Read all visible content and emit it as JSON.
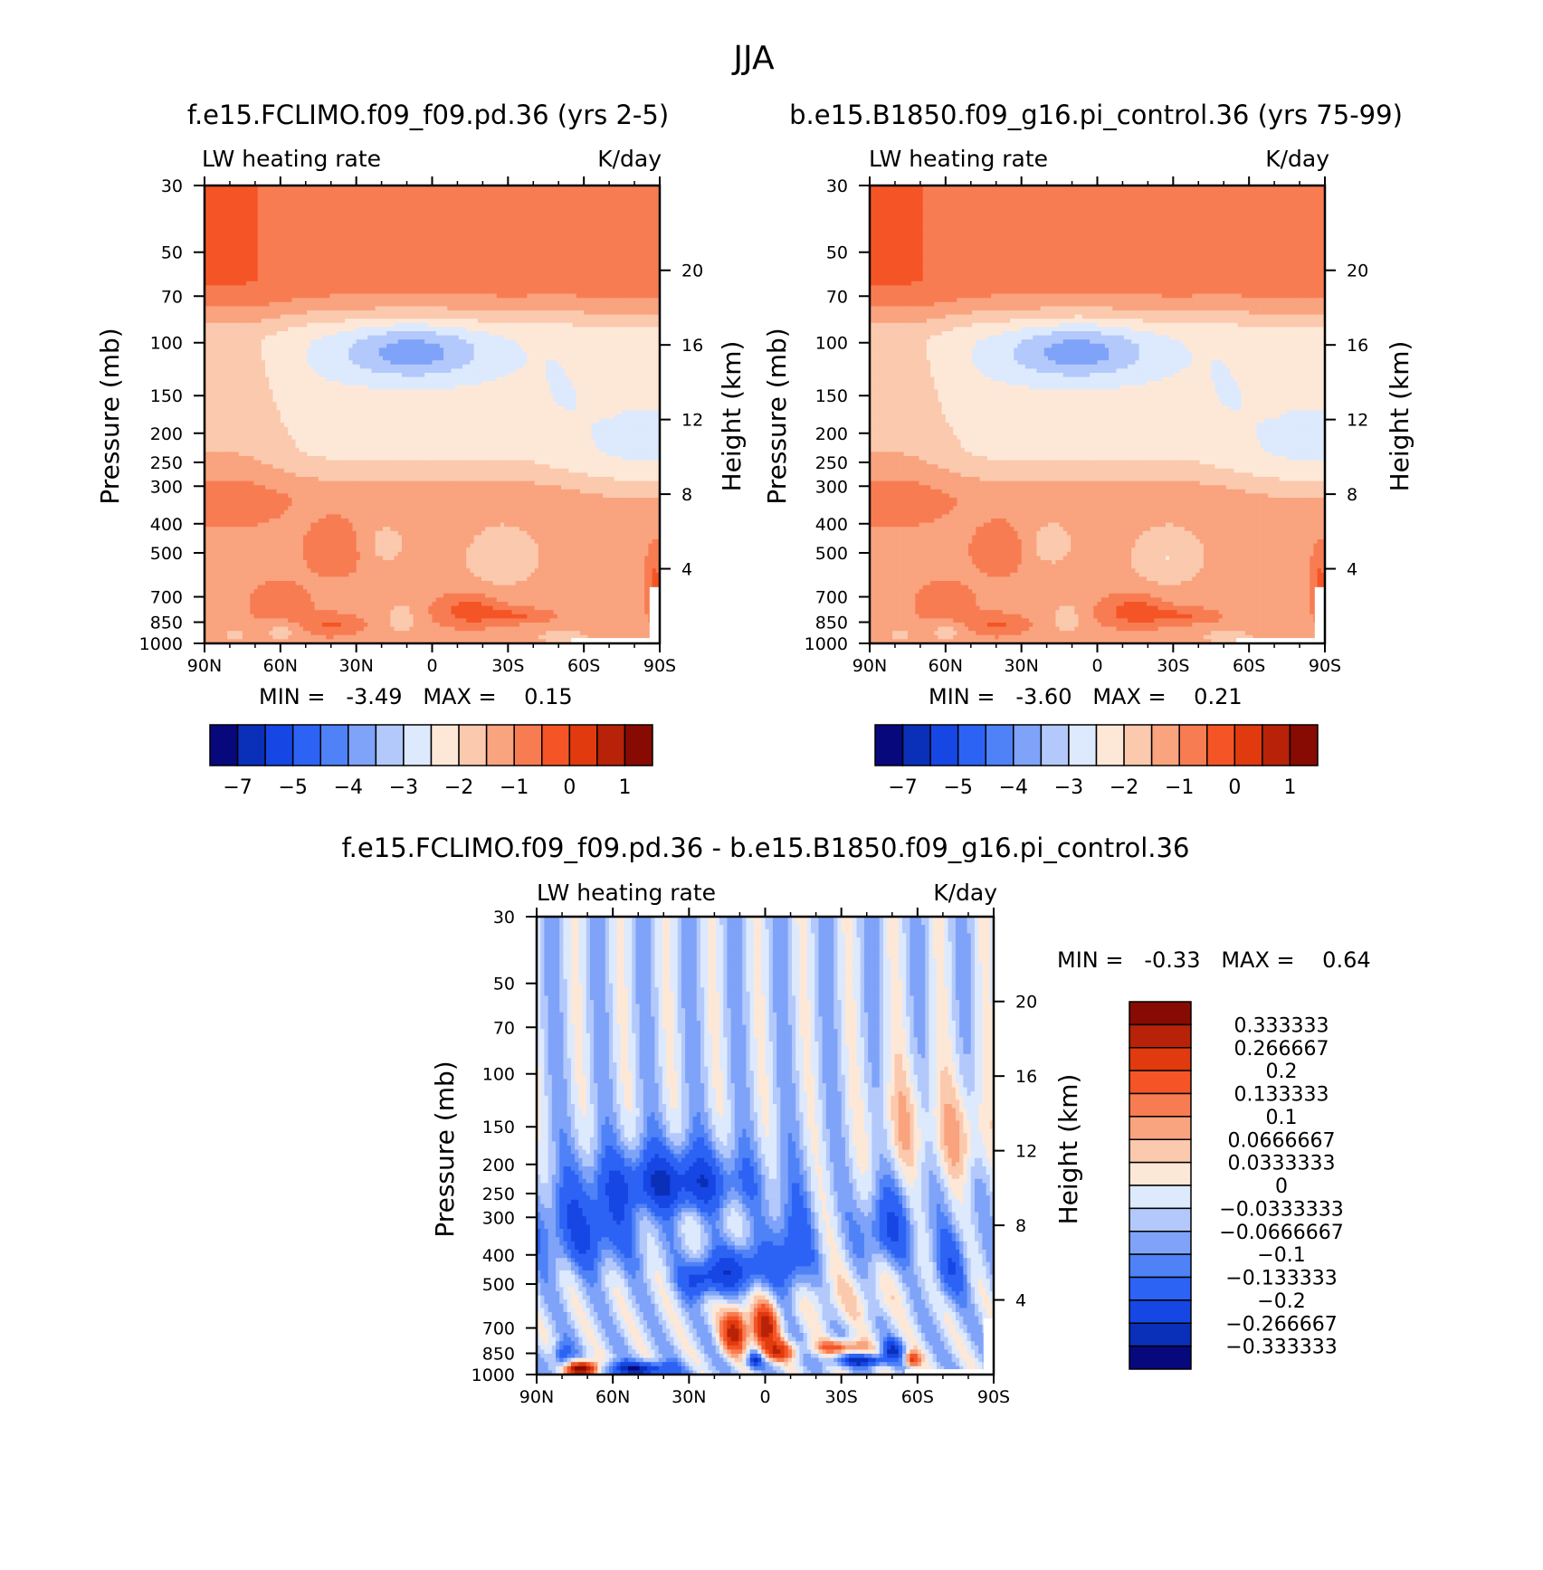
{
  "figure_title": "JJA",
  "colors": {
    "blues": [
      "#08087d",
      "#0a2fb8",
      "#1646e4",
      "#2d63f5",
      "#4f82f7",
      "#7fa3f8",
      "#b3c9fb",
      "#dde9fd"
    ],
    "reds": [
      "#fde8d8",
      "#fbc9ad",
      "#f9a37f",
      "#f87c52",
      "#f55526",
      "#e03a0e",
      "#b82208",
      "#870b02"
    ],
    "blank": "#ffffff"
  },
  "chart_data": [
    {
      "type": "heatmap",
      "id": "p1",
      "title": "f.e15.FCLIMO.f09_f09.pd.36 (yrs 2-5)",
      "variable": "LW heating rate",
      "units": "K/day",
      "xlabel": "",
      "ylabel": "Pressure (mb)",
      "ylabel_right": "Height (km)",
      "x_ticks": [
        "90N",
        "60N",
        "30N",
        "0",
        "30S",
        "60S",
        "90S"
      ],
      "x_range": [
        90,
        -90
      ],
      "y_ticks": [
        30,
        50,
        70,
        100,
        150,
        200,
        250,
        300,
        400,
        500,
        700,
        850,
        1000
      ],
      "y_range": [
        30,
        1000
      ],
      "height_ticks": [
        20,
        16,
        12,
        8,
        4
      ],
      "min_text": "MIN =   -3.49   MAX =    0.15",
      "colorbar": {
        "orientation": "horizontal",
        "tick_labels": [
          "-7",
          "-5",
          "-4",
          "-3",
          "-2",
          "-1",
          "0",
          "1"
        ],
        "n_colors": 16
      }
    },
    {
      "type": "heatmap",
      "id": "p2",
      "title": "b.e15.B1850.f09_g16.pi_control.36 (yrs 75-99)",
      "variable": "LW heating rate",
      "units": "K/day",
      "xlabel": "",
      "ylabel": "Pressure (mb)",
      "ylabel_right": "Height (km)",
      "x_ticks": [
        "90N",
        "60N",
        "30N",
        "0",
        "30S",
        "60S",
        "90S"
      ],
      "x_range": [
        90,
        -90
      ],
      "y_ticks": [
        30,
        50,
        70,
        100,
        150,
        200,
        250,
        300,
        400,
        500,
        700,
        850,
        1000
      ],
      "y_range": [
        30,
        1000
      ],
      "height_ticks": [
        20,
        16,
        12,
        8,
        4
      ],
      "min_text": "MIN =   -3.60   MAX =    0.21",
      "colorbar": {
        "orientation": "horizontal",
        "tick_labels": [
          "-7",
          "-5",
          "-4",
          "-3",
          "-2",
          "-1",
          "0",
          "1"
        ],
        "n_colors": 16
      }
    },
    {
      "type": "heatmap",
      "id": "p3",
      "title": "f.e15.FCLIMO.f09_f09.pd.36 - b.e15.B1850.f09_g16.pi_control.36",
      "variable": "LW heating rate",
      "units": "K/day",
      "xlabel": "",
      "ylabel": "Pressure (mb)",
      "ylabel_right": "Height (km)",
      "x_ticks": [
        "90N",
        "60N",
        "30N",
        "0",
        "30S",
        "60S",
        "90S"
      ],
      "x_range": [
        90,
        -90
      ],
      "y_ticks": [
        30,
        50,
        70,
        100,
        150,
        200,
        250,
        300,
        400,
        500,
        700,
        850,
        1000
      ],
      "y_range": [
        30,
        1000
      ],
      "height_ticks": [
        20,
        16,
        12,
        8,
        4
      ],
      "min_text": "MIN =   -0.33   MAX =    0.64",
      "colorbar": {
        "orientation": "vertical",
        "tick_labels": [
          "0.333333",
          "0.266667",
          "0.2",
          "0.133333",
          "0.1",
          "0.0666667",
          "0.0333333",
          "0",
          "-0.0333333",
          "-0.0666667",
          "-0.1",
          "-0.133333",
          "-0.2",
          "-0.266667",
          "-0.333333"
        ],
        "n_colors": 16
      }
    }
  ]
}
